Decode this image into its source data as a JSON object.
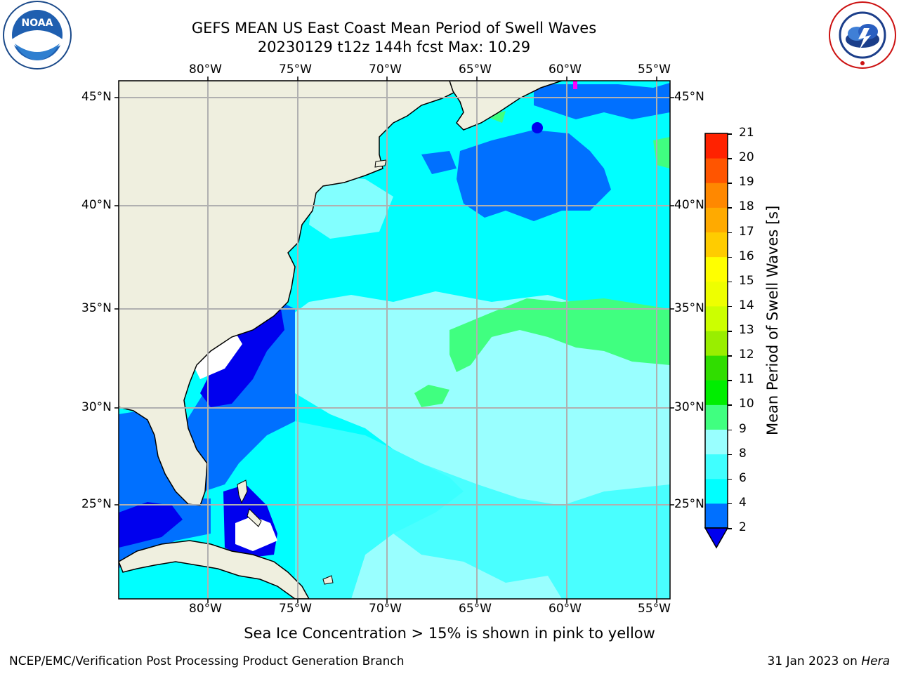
{
  "header": {
    "title_line1": "GEFS MEAN US East Coast Mean Period of Swell Waves",
    "title_line2": "20230129 t12z 144h fcst   Max: 10.29"
  },
  "logos": {
    "left": {
      "text": "NOAA",
      "icon": "noaa-logo"
    },
    "right": {
      "text": "NATIONAL WEATHER SERVICE",
      "icon": "nws-logo"
    }
  },
  "map": {
    "lon_labels": [
      "80°W",
      "75°W",
      "70°W",
      "65°W",
      "60°W",
      "55°W"
    ],
    "lat_labels": [
      "45°N",
      "40°N",
      "35°N",
      "30°N",
      "25°N"
    ],
    "colors": {
      "land": "#efefdf",
      "ocean_dark": "#0000ee",
      "ocean_blue": "#0070ff",
      "ocean_cyan": "#00ffff",
      "ocean_cyan2": "#40ffff",
      "ocean_light": "#99ffff",
      "ocean_green": "#40ff80",
      "ice_pink": "#ff00ff"
    }
  },
  "colorbar": {
    "title": "Mean Period of Swell Waves [s]",
    "ticks": [
      "2",
      "4",
      "6",
      "8",
      "9",
      "10",
      "11",
      "12",
      "13",
      "14",
      "15",
      "16",
      "17",
      "18",
      "19",
      "20",
      "21"
    ],
    "colors": [
      "#0070ff",
      "#00ffff",
      "#40ffff",
      "#99ffff",
      "#40ff80",
      "#00ee00",
      "#30dd00",
      "#99ee00",
      "#ccff00",
      "#eeff00",
      "#ffff00",
      "#ffcc00",
      "#ffaa00",
      "#ff8800",
      "#ff5500",
      "#ff2200"
    ],
    "under_color": "#0000ee",
    "over_color": "#ff0000"
  },
  "caption": "Sea Ice Concentration > 15% is shown in pink to yellow",
  "footer": {
    "left": "NCEP/EMC/Verification Post Processing Product Generation Branch",
    "right_date": "31 Jan 2023 on ",
    "right_host": "Hera"
  }
}
